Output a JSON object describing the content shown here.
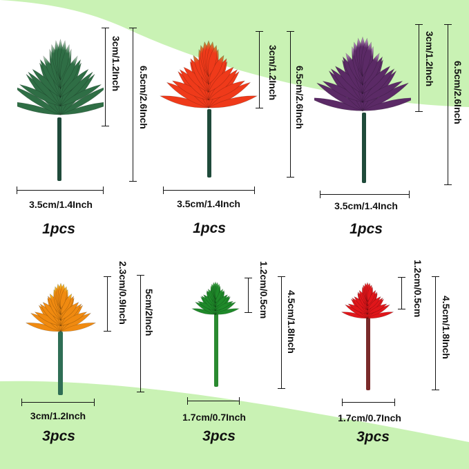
{
  "colors": {
    "background_green": "#c9f2b4",
    "dimension_line": "#111111"
  },
  "items": [
    {
      "height_head": "3cm/1.2Inch",
      "height_total": "6.5cm/2.6Inch",
      "width": "3.5cm/1.4Inch",
      "quantity": "1pcs",
      "petal_color": "#2f6e45",
      "tip_color": "#c7d9c8",
      "stem_color": "#1f4a3a"
    },
    {
      "height_head": "3cm/1.2Inch",
      "height_total": "6.5cm/2.6Inch",
      "width": "3.5cm/1.4Inch",
      "quantity": "1pcs",
      "petal_color": "#ef3a1a",
      "tip_color": "#b8a040",
      "stem_color": "#1f4a3a"
    },
    {
      "height_head": "3cm/1.2Inch",
      "height_total": "6.5cm/2.6Inch",
      "width": "3.5cm/1.4Inch",
      "quantity": "1pcs",
      "petal_color": "#5b2a66",
      "tip_color": "#c9a3cf",
      "stem_color": "#1f4a3a"
    },
    {
      "height_head": "2.3cm/0.9Inch",
      "height_total": "5cm/2Inch",
      "width": "3cm/1.2Inch",
      "quantity": "3pcs",
      "petal_color": "#f08a10",
      "tip_color": "#f7c830",
      "stem_color": "#2f6e55"
    },
    {
      "height_head": "1.2cm/0.5cm",
      "height_total": "4.5cm/1.8Inch",
      "width": "1.7cm/0.7Inch",
      "quantity": "3pcs",
      "petal_color": "#1f8a2a",
      "tip_color": "#5cc060",
      "stem_color": "#2a8a30"
    },
    {
      "height_head": "1.2cm/0.5cm",
      "height_total": "4.5cm/1.8Inch",
      "width": "1.7cm/0.7Inch",
      "quantity": "3pcs",
      "petal_color": "#e0161a",
      "tip_color": "#f04040",
      "stem_color": "#7a2a2a"
    }
  ]
}
